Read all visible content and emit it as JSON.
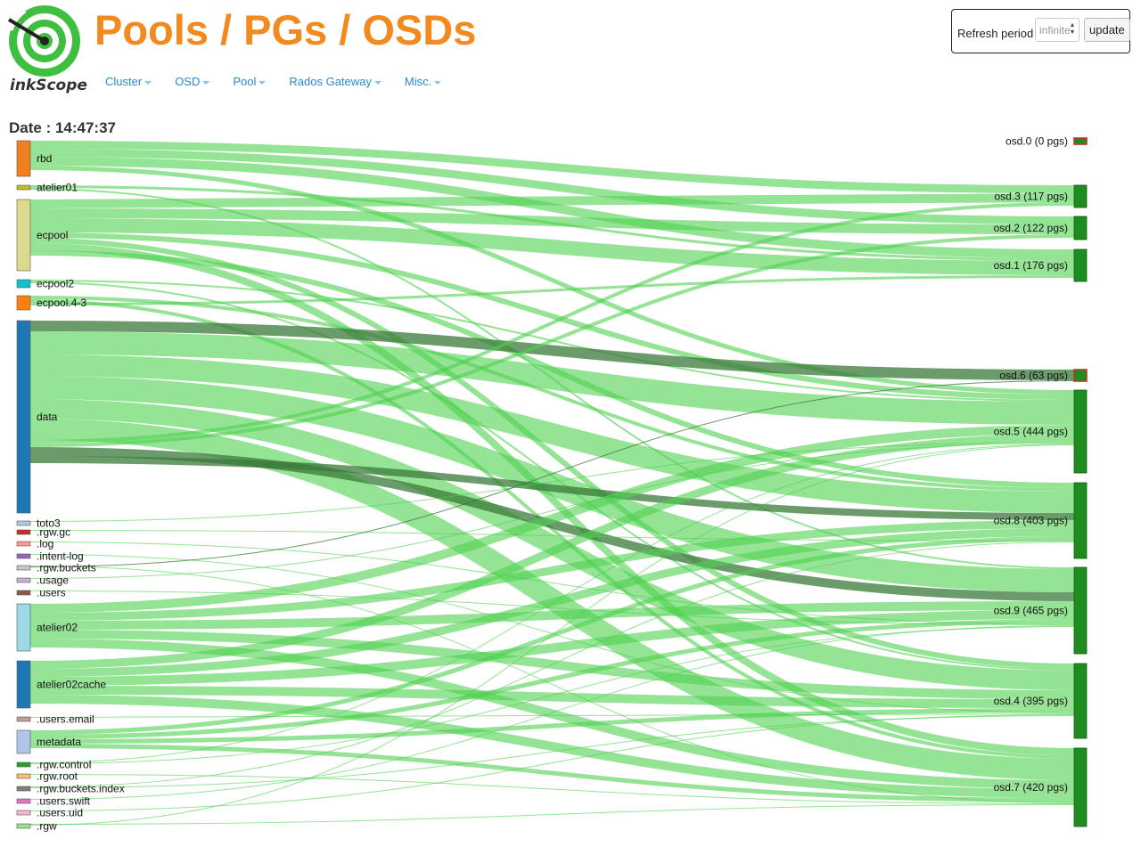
{
  "brand": {
    "logo_text": "inkScope"
  },
  "page": {
    "title": "Pools / PGs / OSDs"
  },
  "nav": {
    "items": [
      {
        "label": "Cluster"
      },
      {
        "label": "OSD"
      },
      {
        "label": "Pool"
      },
      {
        "label": "Rados Gateway"
      },
      {
        "label": "Misc."
      }
    ]
  },
  "refresh": {
    "label": "Refresh period",
    "value": "infinite",
    "button": "update"
  },
  "date": {
    "label": "Date : 14:47:37"
  },
  "colors": {
    "title": "#f28a1e",
    "nav_link": "#2a8bc9",
    "flow": "#4fd14f",
    "flow_dark": "#3a7a3a",
    "osd_node": "#1e8c1e",
    "osd_node_down": "#c0392b"
  },
  "pools": [
    {
      "name": "rbd",
      "color": "#f07f1e"
    },
    {
      "name": "atelier01",
      "color": "#bcbd22"
    },
    {
      "name": "ecpool",
      "color": "#dbdb8d"
    },
    {
      "name": "ecpool2",
      "color": "#17becf"
    },
    {
      "name": "ecpool.4-3",
      "color": "#ff7f0e"
    },
    {
      "name": "data",
      "color": "#1f77b4"
    },
    {
      "name": "toto3",
      "color": "#aec7e8"
    },
    {
      "name": ".rgw.gc",
      "color": "#d62728"
    },
    {
      "name": ".log",
      "color": "#ff9896"
    },
    {
      "name": ".intent-log",
      "color": "#9467bd"
    },
    {
      "name": ".rgw.buckets",
      "color": "#c7c7c7"
    },
    {
      "name": ".usage",
      "color": "#c5b0d5"
    },
    {
      "name": ".users",
      "color": "#8c564b"
    },
    {
      "name": "atelier02",
      "color": "#9edae5"
    },
    {
      "name": "atelier02cache",
      "color": "#1f77b4"
    },
    {
      "name": ".users.email",
      "color": "#c49c94"
    },
    {
      "name": "metadata",
      "color": "#aec7e8"
    },
    {
      "name": ".rgw.control",
      "color": "#2ca02c"
    },
    {
      "name": ".rgw.root",
      "color": "#ffbb78"
    },
    {
      "name": ".rgw.buckets.index",
      "color": "#7f7f7f"
    },
    {
      "name": ".users.swift",
      "color": "#e377c2"
    },
    {
      "name": ".users.uid",
      "color": "#f7b6d2"
    },
    {
      "name": ".rgw",
      "color": "#98df8a"
    }
  ],
  "osds": [
    {
      "label": "osd.0 (0 pgs)",
      "pgs": 0,
      "up": false
    },
    {
      "label": "osd.3 (117 pgs)",
      "pgs": 117,
      "up": true
    },
    {
      "label": "osd.2 (122 pgs)",
      "pgs": 122,
      "up": true
    },
    {
      "label": "osd.1 (176 pgs)",
      "pgs": 176,
      "up": true
    },
    {
      "label": "osd.6 (63 pgs)",
      "pgs": 63,
      "up": false
    },
    {
      "label": "osd.5 (444 pgs)",
      "pgs": 444,
      "up": true
    },
    {
      "label": "osd.8 (403 pgs)",
      "pgs": 403,
      "up": true
    },
    {
      "label": "osd.9 (465 pgs)",
      "pgs": 465,
      "up": true
    },
    {
      "label": "osd.4 (395 pgs)",
      "pgs": 395,
      "up": true
    },
    {
      "label": "osd.7 (420 pgs)",
      "pgs": 420,
      "up": true
    }
  ]
}
